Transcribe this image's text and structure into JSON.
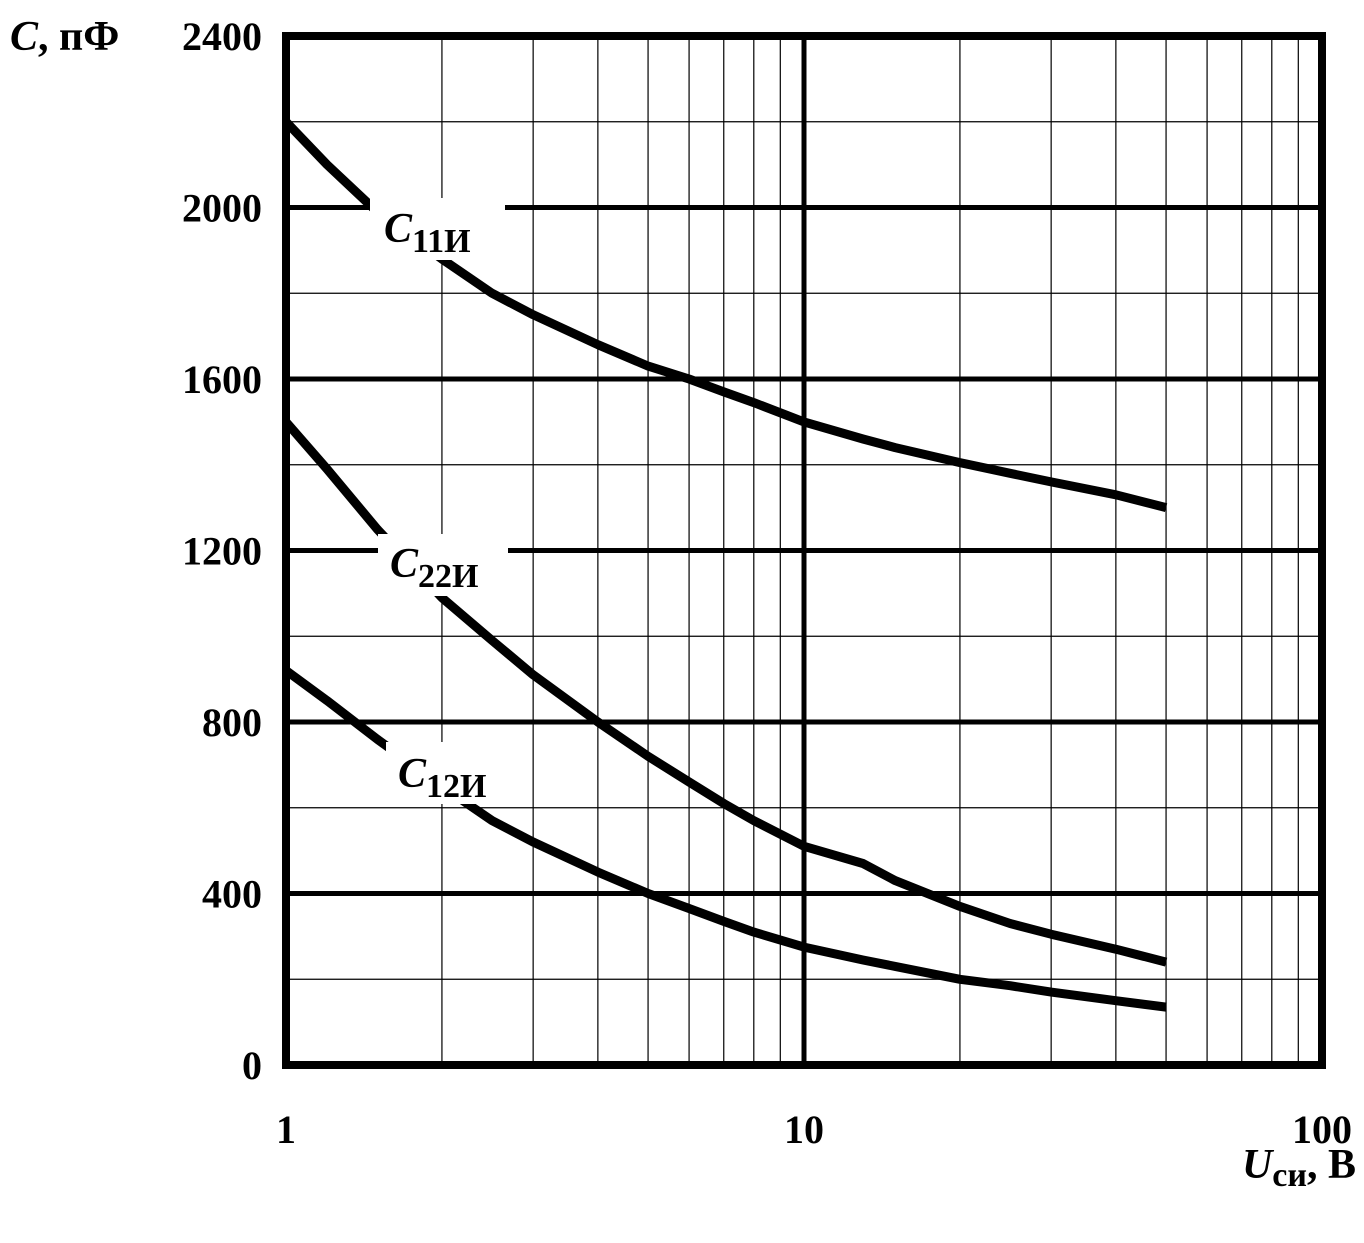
{
  "chart_data": {
    "type": "line",
    "x_scale": "log",
    "xlim": [
      1,
      100
    ],
    "ylim": [
      0,
      2400
    ],
    "x_ticks": [
      "1",
      "10",
      "100"
    ],
    "y_ticks": [
      "0",
      "400",
      "800",
      "1200",
      "1600",
      "2000",
      "2400"
    ],
    "xlabel_symbol": "U",
    "xlabel_sub": "си",
    "xlabel_unit": ", В",
    "ylabel_symbol": "C",
    "ylabel_unit": ", пФ",
    "grid": true,
    "series": [
      {
        "name": "C",
        "name_sub": "11И",
        "x": [
          1,
          1.2,
          1.5,
          2,
          2.5,
          3,
          4,
          5,
          6,
          7,
          8,
          10,
          13,
          15,
          20,
          25,
          30,
          40,
          50
        ],
        "y": [
          2200,
          2100,
          1990,
          1880,
          1800,
          1750,
          1680,
          1630,
          1600,
          1570,
          1545,
          1500,
          1460,
          1440,
          1405,
          1380,
          1360,
          1330,
          1300
        ]
      },
      {
        "name": "C",
        "name_sub": "22И",
        "x": [
          1,
          1.2,
          1.5,
          2,
          2.5,
          3,
          4,
          5,
          6,
          7,
          8,
          10,
          13,
          15,
          20,
          25,
          30,
          40,
          50
        ],
        "y": [
          1500,
          1390,
          1250,
          1090,
          990,
          910,
          800,
          720,
          660,
          610,
          570,
          510,
          470,
          430,
          370,
          330,
          305,
          270,
          240
        ]
      },
      {
        "name": "C",
        "name_sub": "12И",
        "x": [
          1,
          1.2,
          1.5,
          2,
          2.5,
          3,
          4,
          5,
          6,
          7,
          8,
          10,
          13,
          15,
          20,
          25,
          30,
          40,
          50
        ],
        "y": [
          920,
          850,
          760,
          650,
          570,
          520,
          450,
          400,
          365,
          335,
          310,
          275,
          245,
          230,
          200,
          185,
          170,
          150,
          135
        ]
      }
    ]
  }
}
